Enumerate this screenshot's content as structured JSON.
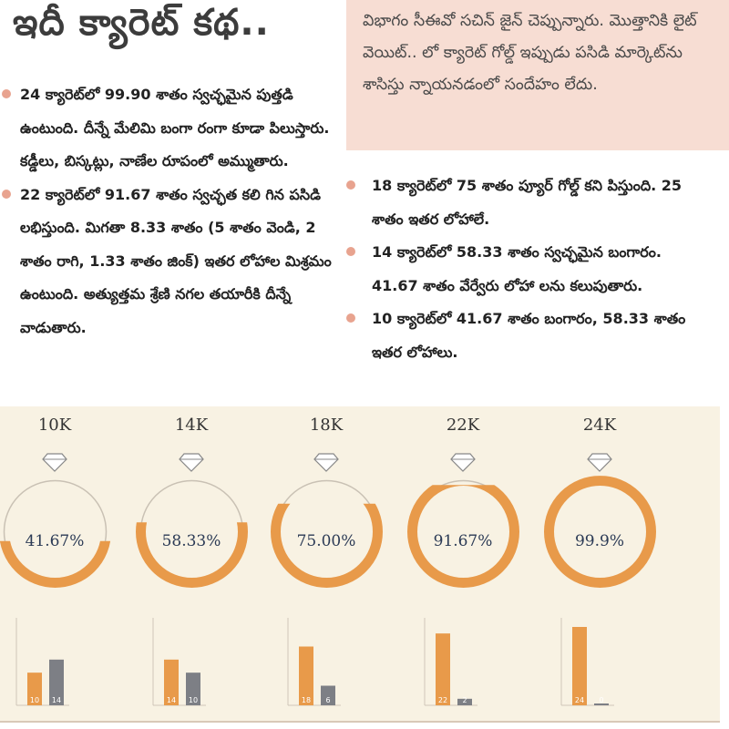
{
  "title": "ఇదీ క్యారెట్ కథ..",
  "side_note": "విభాగం సీఈవో సచిన్ జైన్ చెప్పున్నారు. మొత్తానికి లైట్ వెయిట్.. లో క్యారెట్ గోల్డ్ ఇప్పుడు పసిడి మార్కెట్‌ను శాసిస్తు న్నాయనడంలో సందేహం లేదు.",
  "left_points": [
    "24 క్యారెట్‌లో 99.90 శాతం స్వచ్ఛమైన పుత్తడి ఉంటుంది. దీన్నే మేలిమి బంగా రంగా కూడా పిలుస్తారు. కడ్డీలు, బిస్కట్లు, నాణేల రూపంలో అమ్ముతారు.",
    "22 క్యారెట్‌లో 91.67 శాతం స్వచ్ఛత కలి గిన పసిడి లభిస్తుంది. మిగతా 8.33 శాతం (5 శాతం వెండి, 2 శాతం రాగి, 1.33 శాతం జింక్) ఇతర లోహాల మిశ్రమం ఉంటుంది. అత్యుత్తమ శ్రేణి నగల తయారీకి దీన్నే వాడుతారు."
  ],
  "right_points": [
    "18 క్యారెట్‌లో 75 శాతం ప్యూర్ గోల్డ్ కని పిస్తుంది. 25 శాతం ఇతర లోహాలే.",
    "14 క్యారెట్‌లో 58.33 శాతం స్వచ్ఛమైన బంగారం. 41.67 శాతం వేర్వేరు లోహా లను కలుపుతారు.",
    "10 క్యారెట్‌లో 41.67 శాతం బంగారం, 58.33 శాతం ఇతర లోహాలు."
  ],
  "colors": {
    "gold": "#e89a4a",
    "other": "#7d7f85",
    "ring_track": "#c9c1b4",
    "panel": "#f8f2e3"
  },
  "karats": [
    {
      "label": "10K",
      "pct_text": "41.67%",
      "fraction": 0.4167,
      "gold_parts": 10,
      "other_parts": 14,
      "gold_label": "10",
      "other_label": "14"
    },
    {
      "label": "14K",
      "pct_text": "58.33%",
      "fraction": 0.5833,
      "gold_parts": 14,
      "other_parts": 10,
      "gold_label": "14",
      "other_label": "10"
    },
    {
      "label": "18K",
      "pct_text": "75.00%",
      "fraction": 0.75,
      "gold_parts": 18,
      "other_parts": 6,
      "gold_label": "18",
      "other_label": "6"
    },
    {
      "label": "22K",
      "pct_text": "91.67%",
      "fraction": 0.9167,
      "gold_parts": 22,
      "other_parts": 2,
      "gold_label": "22",
      "other_label": "2"
    },
    {
      "label": "24K",
      "pct_text": "99.9%",
      "fraction": 0.999,
      "gold_parts": 24,
      "other_parts": 0,
      "gold_label": "24",
      "other_label": "0"
    }
  ]
}
